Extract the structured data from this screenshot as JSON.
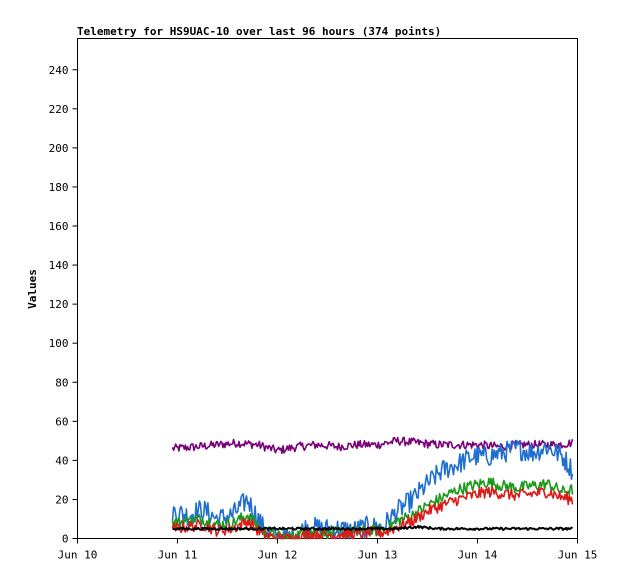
{
  "chart_data": {
    "type": "line",
    "title": "Telemetry for HS9UAC-10 over last 96 hours (374 points)",
    "xlabel": "",
    "ylabel": "Values",
    "x_ticks": [
      "Jun 10",
      "Jun 11",
      "Jun 12",
      "Jun 13",
      "Jun 14",
      "Jun 15"
    ],
    "x_range_days": [
      10,
      15
    ],
    "y_ticks": [
      0,
      20,
      40,
      60,
      80,
      100,
      120,
      140,
      160,
      180,
      200,
      220,
      240
    ],
    "ylim": [
      0,
      256
    ],
    "grid": false,
    "series": [
      {
        "color": "#7a007a",
        "x_days": [
          10.95,
          11.2,
          11.4,
          11.6,
          11.8,
          12.0,
          12.2,
          12.4,
          12.6,
          12.8,
          13.0,
          13.2,
          13.4,
          13.6,
          13.8,
          14.0,
          14.2,
          14.4,
          14.6,
          14.8,
          14.95
        ],
        "values": [
          46,
          47,
          48,
          49,
          48,
          45,
          47,
          48,
          47,
          48,
          48,
          50,
          49,
          48,
          48,
          48,
          47,
          48,
          48,
          48,
          49
        ]
      },
      {
        "color": "#1f6fcf",
        "x_days": [
          10.95,
          11.1,
          11.25,
          11.4,
          11.55,
          11.7,
          11.85,
          12.0,
          12.15,
          12.3,
          12.45,
          12.6,
          12.75,
          12.9,
          13.05,
          13.2,
          13.35,
          13.5,
          13.65,
          13.8,
          13.95,
          14.1,
          14.25,
          14.4,
          14.55,
          14.7,
          14.85,
          14.95
        ],
        "values": [
          14,
          12,
          15,
          10,
          12,
          20,
          6,
          0,
          1,
          6,
          5,
          5,
          4,
          6,
          6,
          14,
          20,
          28,
          35,
          38,
          42,
          42,
          44,
          46,
          44,
          47,
          42,
          35
        ]
      },
      {
        "color": "#1a9a1a",
        "x_days": [
          10.95,
          11.1,
          11.25,
          11.4,
          11.55,
          11.7,
          11.85,
          12.0,
          12.15,
          12.3,
          12.45,
          12.6,
          12.75,
          12.9,
          13.05,
          13.2,
          13.35,
          13.5,
          13.65,
          13.8,
          13.95,
          14.1,
          14.25,
          14.4,
          14.55,
          14.7,
          14.85,
          14.95
        ],
        "values": [
          8,
          9,
          10,
          7,
          8,
          12,
          4,
          1,
          1,
          4,
          3,
          3,
          3,
          4,
          4,
          9,
          12,
          17,
          21,
          25,
          27,
          29,
          27,
          26,
          27,
          28,
          24,
          25
        ]
      },
      {
        "color": "#dd1a1a",
        "x_days": [
          10.95,
          11.1,
          11.25,
          11.4,
          11.55,
          11.7,
          11.85,
          12.0,
          12.15,
          12.3,
          12.45,
          12.6,
          12.75,
          12.9,
          13.05,
          13.2,
          13.35,
          13.5,
          13.65,
          13.8,
          13.95,
          14.1,
          14.25,
          14.4,
          14.55,
          14.7,
          14.85,
          14.95
        ],
        "values": [
          5,
          6,
          7,
          4,
          5,
          9,
          2,
          0,
          0,
          2,
          2,
          2,
          2,
          3,
          3,
          6,
          9,
          14,
          17,
          20,
          22,
          24,
          23,
          22,
          23,
          24,
          21,
          20
        ]
      },
      {
        "color": "#000000",
        "x_days": [
          10.95,
          11.2,
          11.4,
          11.6,
          11.8,
          12.0,
          12.2,
          12.4,
          12.6,
          12.8,
          13.0,
          13.2,
          13.4,
          13.6,
          13.8,
          14.0,
          14.2,
          14.4,
          14.6,
          14.8,
          14.95
        ],
        "values": [
          5,
          5,
          5,
          5,
          5,
          5,
          5,
          5,
          5,
          5,
          5,
          5,
          6,
          5,
          5,
          5,
          5,
          5,
          5,
          5,
          5
        ]
      }
    ]
  }
}
